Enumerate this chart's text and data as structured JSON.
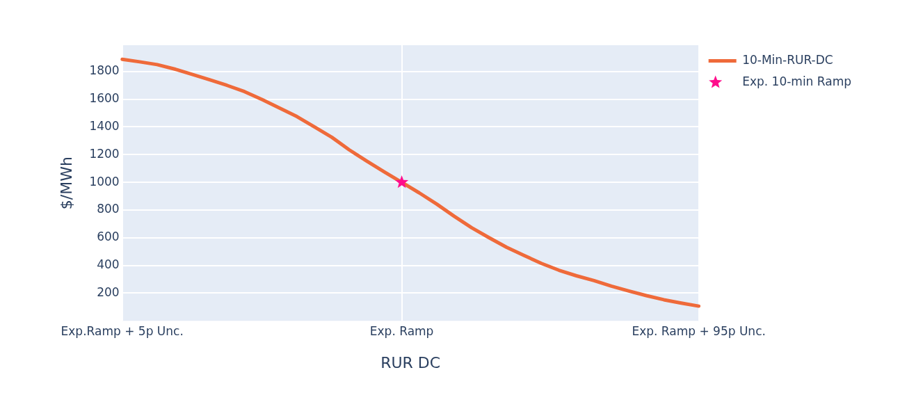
{
  "chart_data": {
    "type": "line",
    "xlabel": "RUR DC",
    "ylabel": "$/MWh",
    "categories": [
      "Exp.Ramp + 5p Unc.",
      null,
      null,
      null,
      null,
      null,
      null,
      null,
      null,
      null,
      null,
      null,
      null,
      null,
      null,
      null,
      "Exp. Ramp",
      null,
      null,
      null,
      null,
      null,
      null,
      null,
      null,
      null,
      null,
      null,
      null,
      null,
      null,
      null,
      null,
      "Exp. Ramp + 95p Unc."
    ],
    "ylim": [
      0,
      1990
    ],
    "yticks": [
      200,
      400,
      600,
      800,
      1000,
      1200,
      1400,
      1600,
      1800
    ],
    "grid": true,
    "legend": "top right",
    "series": [
      {
        "name": "10-Min-RUR-DC",
        "type": "line",
        "color": "#ef6a3a",
        "marker": "none",
        "values": [
          1888,
          1870,
          1850,
          1818,
          1780,
          1741,
          1700,
          1655,
          1598,
          1537,
          1475,
          1400,
          1325,
          1234,
          1153,
          1075,
          1000,
          924,
          843,
          755,
          672,
          600,
          531,
          472,
          414,
          365,
          325,
          290,
          250,
          215,
          182,
          152,
          128,
          106
        ]
      },
      {
        "name": "Exp. 10-min Ramp",
        "type": "scatter",
        "color": "#ff0d8c",
        "marker": "star",
        "values": [
          null,
          null,
          null,
          null,
          null,
          null,
          null,
          null,
          null,
          null,
          null,
          null,
          null,
          null,
          null,
          null,
          1000,
          null,
          null,
          null,
          null,
          null,
          null,
          null,
          null,
          null,
          null,
          null,
          null,
          null,
          null,
          null,
          null,
          null
        ]
      }
    ]
  }
}
